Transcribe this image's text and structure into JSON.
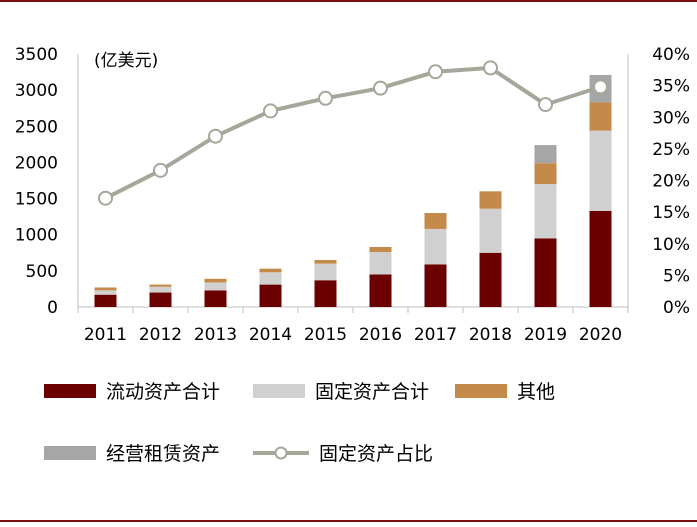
{
  "chart_data": {
    "type": "bar",
    "stacked": true,
    "unit_label": "(亿美元)",
    "categories": [
      "2011",
      "2012",
      "2013",
      "2014",
      "2015",
      "2016",
      "2017",
      "2018",
      "2019",
      "2020"
    ],
    "series": [
      {
        "name": "流动资产合计",
        "kind": "bar",
        "axis": "left",
        "color": "#6b0000",
        "values": [
          170,
          200,
          230,
          310,
          370,
          450,
          590,
          750,
          950,
          1330
        ]
      },
      {
        "name": "固定资产合计",
        "kind": "bar",
        "axis": "left",
        "color": "#d0d0d0",
        "values": [
          60,
          80,
          110,
          170,
          230,
          310,
          490,
          610,
          750,
          1110
        ]
      },
      {
        "name": "其他",
        "kind": "bar",
        "axis": "left",
        "color": "#c48a4a",
        "values": [
          40,
          30,
          50,
          50,
          50,
          70,
          220,
          240,
          290,
          390
        ]
      },
      {
        "name": "经营租赁资产",
        "kind": "bar",
        "axis": "left",
        "color": "#a6a6a6",
        "values": [
          0,
          0,
          0,
          0,
          0,
          0,
          0,
          0,
          250,
          380
        ]
      },
      {
        "name": "固定资产占比",
        "kind": "line",
        "axis": "right",
        "color": "#a6a69a",
        "values": [
          17.2,
          21.6,
          27.0,
          31.0,
          33.0,
          34.6,
          37.2,
          37.8,
          32.0,
          34.8
        ]
      }
    ],
    "y_left": {
      "min": 0,
      "max": 3500,
      "ticks": [
        "0",
        "500",
        "1000",
        "1500",
        "2000",
        "2500",
        "3000",
        "3500"
      ]
    },
    "y_right": {
      "min": 0,
      "max": 40,
      "ticks": [
        "0%",
        "5%",
        "10%",
        "15%",
        "20%",
        "25%",
        "30%",
        "35%",
        "40%"
      ]
    },
    "legend": {
      "placement": "bottom",
      "rows": [
        [
          "流动资产合计",
          "固定资产合计",
          "其他"
        ],
        [
          "经营租赁资产",
          "固定资产占比"
        ]
      ]
    },
    "frame_color": "#7b1010"
  }
}
